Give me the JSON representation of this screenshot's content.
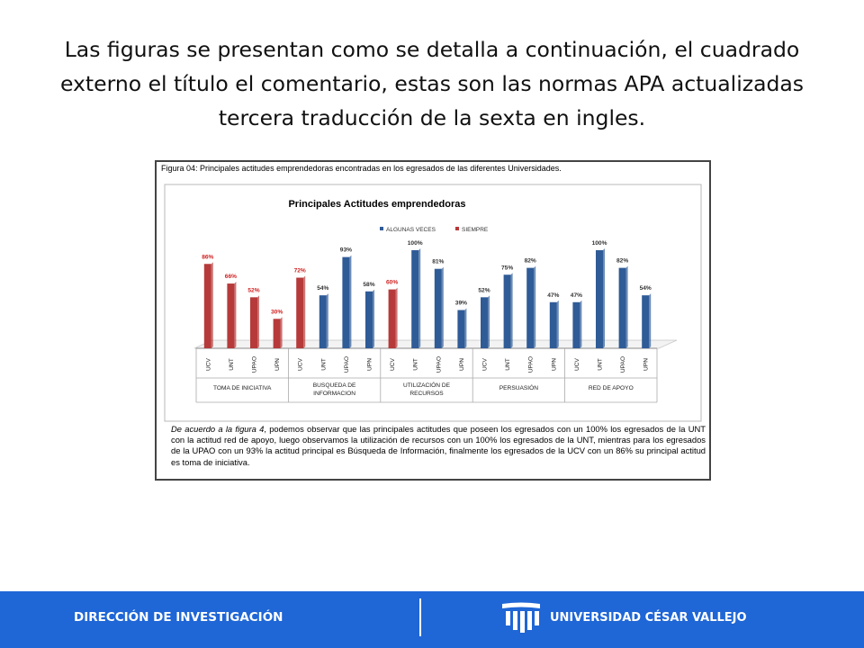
{
  "slide": {
    "title": "Las figuras se presentan como se detalla a continuación, el cuadrado externo el título el comentario, estas son las normas APA actualizadas tercera traducción de la sexta en ingles."
  },
  "figure": {
    "caption": "Figura 04: Principales actitudes emprendedoras encontradas en los egresados de las diferentes Universidades.",
    "comment_ref": "De acuerdo a la figura 4",
    "comment_body": ", podemos observar que las principales actitudes que poseen los egresados con un 100% los egresados de la UNT con la actitud red de apoyo, luego observamos la utilización de recursos con un 100% los egresados de la UNT, mientras para los egresados de la UPAO con un 93% la actitud principal es Búsqueda de Información, finalmente los egresados de la UCV con un 86% su principal actitud es toma de iniciativa."
  },
  "chart_data": {
    "type": "bar",
    "title": "Principales Actitudes emprendedoras",
    "legend": [
      {
        "name": "ALGUNAS VECES",
        "color": "#2f5b97"
      },
      {
        "name": "SIEMPRE",
        "color": "#b73a3a"
      }
    ],
    "legend_position": "top",
    "groups": [
      {
        "label": "TOMA DE INICIATIVA",
        "bars": [
          {
            "university": "UCV",
            "value": 86,
            "series": "SIEMPRE"
          },
          {
            "university": "UNT",
            "value": 66,
            "series": "SIEMPRE"
          },
          {
            "university": "UPAO",
            "value": 52,
            "series": "SIEMPRE"
          },
          {
            "university": "UPN",
            "value": 30,
            "series": "SIEMPRE"
          }
        ]
      },
      {
        "label": "BUSQUEDA DE INFORMACION",
        "bars": [
          {
            "university": "UCV",
            "value": 72,
            "series": "SIEMPRE"
          },
          {
            "university": "UNT",
            "value": 54,
            "series": "ALGUNAS VECES"
          },
          {
            "university": "UPAO",
            "value": 93,
            "series": "ALGUNAS VECES"
          },
          {
            "university": "UPN",
            "value": 58,
            "series": "ALGUNAS VECES"
          }
        ]
      },
      {
        "label": "UTILIZACIÓN DE RECURSOS",
        "bars": [
          {
            "university": "UCV",
            "value": 60,
            "series": "SIEMPRE"
          },
          {
            "university": "UNT",
            "value": 100,
            "series": "ALGUNAS VECES"
          },
          {
            "university": "UPAO",
            "value": 81,
            "series": "ALGUNAS VECES"
          },
          {
            "university": "UPN",
            "value": 39,
            "series": "ALGUNAS VECES"
          }
        ]
      },
      {
        "label": "PERSUASIÓN",
        "bars": [
          {
            "university": "UCV",
            "value": 52,
            "series": "ALGUNAS VECES"
          },
          {
            "university": "UNT",
            "value": 75,
            "series": "ALGUNAS VECES"
          },
          {
            "university": "UPAO",
            "value": 82,
            "series": "ALGUNAS VECES"
          },
          {
            "university": "UPN",
            "value": 47,
            "series": "ALGUNAS VECES"
          }
        ]
      },
      {
        "label": "RED DE APOYO",
        "bars": [
          {
            "university": "UCV",
            "value": 47,
            "series": "ALGUNAS VECES"
          },
          {
            "university": "UNT",
            "value": 100,
            "series": "ALGUNAS VECES"
          },
          {
            "university": "UPAO",
            "value": 82,
            "series": "ALGUNAS VECES"
          },
          {
            "university": "UPN",
            "value": 54,
            "series": "ALGUNAS VECES"
          }
        ]
      }
    ],
    "value_suffix": "%",
    "ylim": [
      0,
      100
    ],
    "grid": false
  },
  "footer": {
    "left_text": "DIRECCIÓN DE INVESTIGACIÓN",
    "right_text": "UNIVERSIDAD CÉSAR VALLEJO",
    "background_color": "#1f66d6"
  }
}
